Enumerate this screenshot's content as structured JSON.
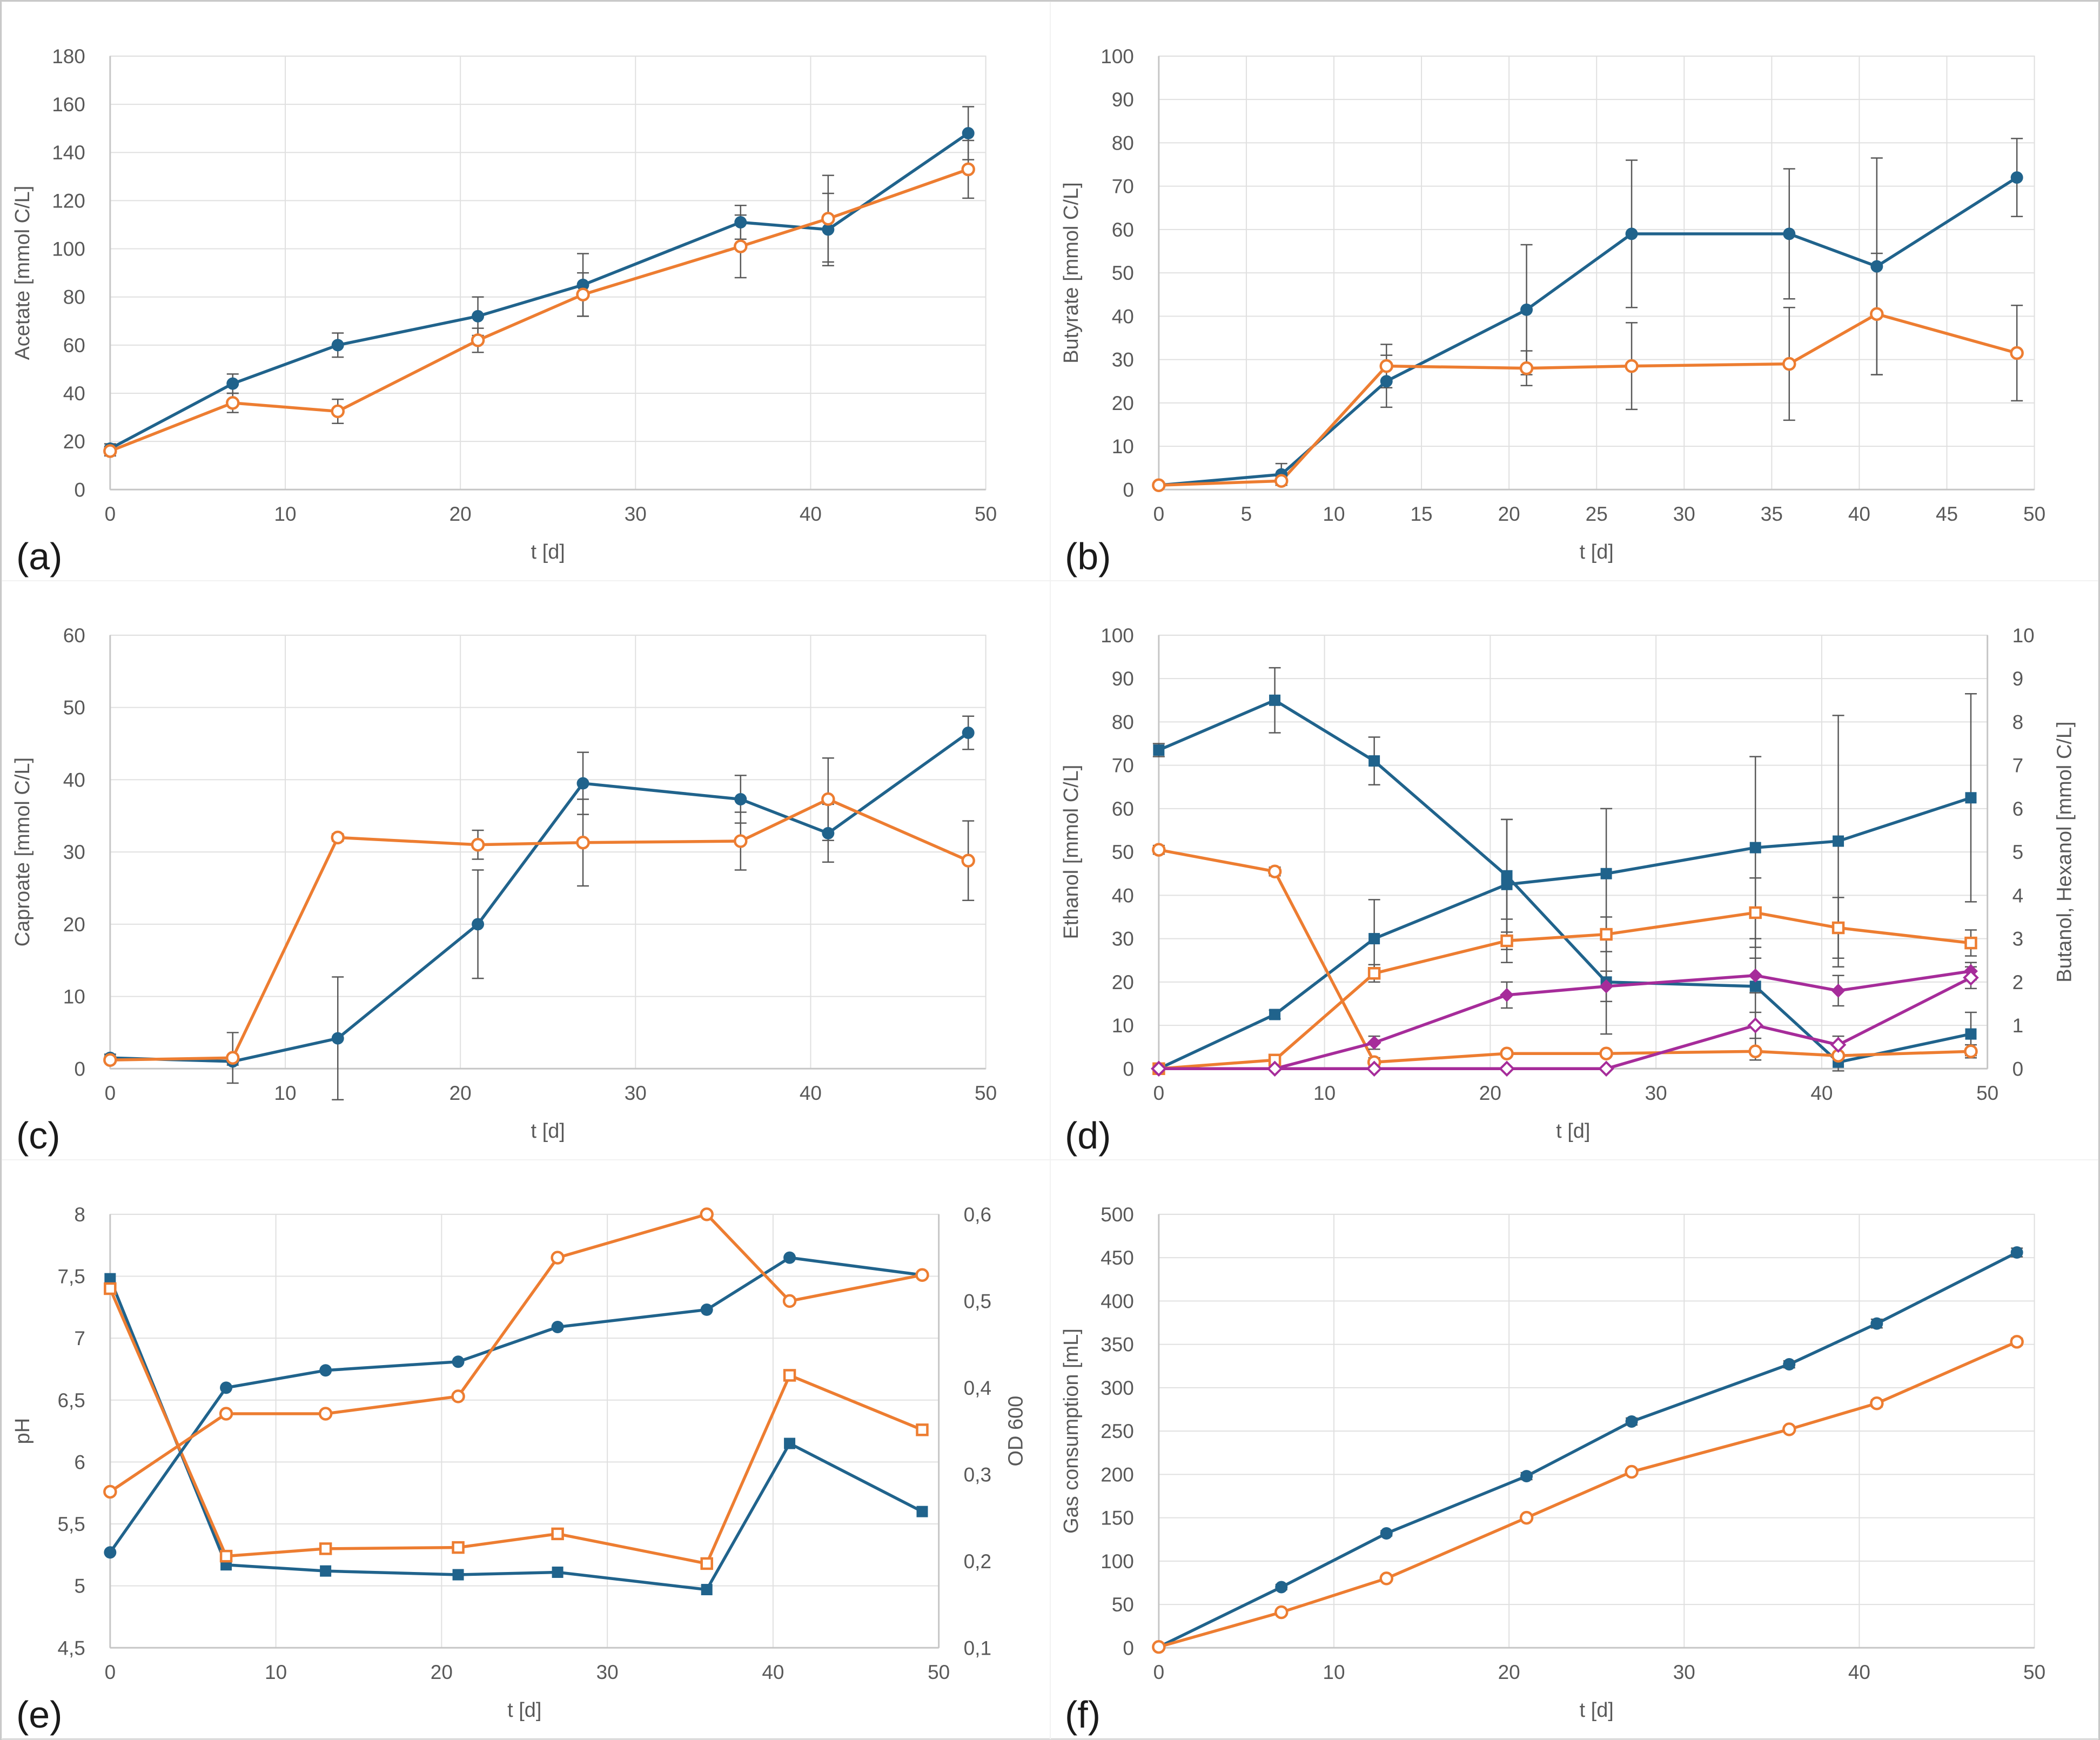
{
  "figure": {
    "background": "#ffffff",
    "border_color": "#c9c9c9",
    "colors": {
      "series_blue": "#20638C",
      "series_orange": "#ED7D31",
      "series_purple": "#A62C9A",
      "error_bar": "#595959",
      "gridline": "#E0E0E0",
      "axis_line": "#C6C6C6",
      "tick_text": "#595959",
      "axis_title_text": "#595959",
      "panel_letter": "#1a1a1a"
    }
  },
  "chart_data": [
    {
      "type": "line",
      "id": "a",
      "panel_label": "(a)",
      "x_axis": {
        "label": "t [d]",
        "min": 0,
        "max": 50,
        "tick_values": [
          0,
          10,
          20,
          30,
          40,
          50
        ],
        "tick_labels": [
          "0",
          "10",
          "20",
          "30",
          "40",
          "50"
        ]
      },
      "y_left": {
        "label": "Acetate [mmol C/L]",
        "min": 0,
        "max": 180,
        "tick_values": [
          0,
          20,
          40,
          60,
          80,
          100,
          120,
          140,
          160,
          180
        ],
        "tick_labels": [
          "0",
          "20",
          "40",
          "60",
          "80",
          "100",
          "120",
          "140",
          "160",
          "180"
        ]
      },
      "series": [
        {
          "name": "blue-closed-circles",
          "axis": "left",
          "color": "series_blue",
          "marker": "filled-circle",
          "x": [
            0,
            7,
            13,
            21,
            27,
            36,
            41,
            49
          ],
          "y": [
            17,
            44,
            60,
            72,
            85,
            111,
            108,
            148
          ],
          "err": [
            2,
            4,
            5,
            8,
            13,
            7,
            15,
            11
          ]
        },
        {
          "name": "orange-open-circles",
          "axis": "left",
          "color": "series_orange",
          "marker": "open-circle",
          "x": [
            0,
            7,
            13,
            21,
            27,
            36,
            41,
            49
          ],
          "y": [
            16,
            36,
            32.5,
            62,
            81,
            101,
            112.5,
            133
          ],
          "err": [
            2,
            4,
            5,
            5,
            9,
            13,
            18,
            12
          ]
        }
      ]
    },
    {
      "type": "line",
      "id": "b",
      "panel_label": "(b)",
      "x_axis": {
        "label": "t [d]",
        "min": 0,
        "max": 50,
        "tick_values": [
          0,
          5,
          10,
          15,
          20,
          25,
          30,
          35,
          40,
          45,
          50
        ],
        "tick_labels": [
          "0",
          "5",
          "10",
          "15",
          "20",
          "25",
          "30",
          "35",
          "40",
          "45",
          "50"
        ]
      },
      "y_left": {
        "label": "Butyrate [mmol C/L]",
        "min": 0,
        "max": 100,
        "tick_values": [
          0,
          10,
          20,
          30,
          40,
          50,
          60,
          70,
          80,
          90,
          100
        ],
        "tick_labels": [
          "0",
          "10",
          "20",
          "30",
          "40",
          "50",
          "60",
          "70",
          "80",
          "90",
          "100"
        ]
      },
      "series": [
        {
          "name": "blue-closed-circles",
          "axis": "left",
          "color": "series_blue",
          "marker": "filled-circle",
          "x": [
            0,
            7,
            13,
            21,
            27,
            36,
            41,
            49
          ],
          "y": [
            1,
            3.5,
            25,
            41.5,
            59,
            59,
            51.5,
            72
          ],
          "err": [
            0.5,
            2.5,
            6,
            15,
            17,
            15,
            25,
            9
          ]
        },
        {
          "name": "orange-open-circles",
          "axis": "left",
          "color": "series_orange",
          "marker": "open-circle",
          "x": [
            0,
            7,
            13,
            21,
            27,
            36,
            41,
            49
          ],
          "y": [
            1,
            2,
            28.5,
            28,
            28.5,
            29,
            40.5,
            31.5
          ],
          "err": [
            0.5,
            1,
            5,
            4,
            10,
            13,
            14,
            11
          ]
        }
      ]
    },
    {
      "type": "line",
      "id": "c",
      "panel_label": "(c)",
      "x_axis": {
        "label": "t [d]",
        "min": 0,
        "max": 50,
        "tick_values": [
          0,
          10,
          20,
          30,
          40,
          50
        ],
        "tick_labels": [
          "0",
          "10",
          "20",
          "30",
          "40",
          "50"
        ]
      },
      "y_left": {
        "label": "Caproate [mmol C/L]",
        "min": 0,
        "max": 60,
        "tick_values": [
          0,
          10,
          20,
          30,
          40,
          50,
          60
        ],
        "tick_labels": [
          "0",
          "10",
          "20",
          "30",
          "40",
          "50",
          "60"
        ]
      },
      "series": [
        {
          "name": "blue-closed-circles",
          "axis": "left",
          "color": "series_blue",
          "marker": "filled-circle",
          "x": [
            0,
            7,
            13,
            21,
            27,
            36,
            41,
            49
          ],
          "y": [
            1.5,
            1,
            4.2,
            20,
            39.5,
            37.3,
            32.6,
            46.5
          ],
          "err": [
            0.5,
            0.5,
            8.5,
            7.5,
            4.3,
            3.3,
            4,
            2.3
          ]
        },
        {
          "name": "orange-open-circles",
          "axis": "left",
          "color": "series_orange",
          "marker": "open-circle",
          "x": [
            0,
            7,
            13,
            21,
            27,
            36,
            41,
            49
          ],
          "y": [
            1.2,
            1.5,
            32,
            31,
            31.3,
            31.5,
            37.3,
            28.8
          ],
          "err": [
            0.3,
            3.5,
            0.5,
            2,
            6,
            4,
            5.7,
            5.5
          ]
        }
      ]
    },
    {
      "type": "line",
      "id": "d",
      "panel_label": "(d)",
      "x_axis": {
        "label": "t [d]",
        "min": 0,
        "max": 50,
        "tick_values": [
          0,
          10,
          20,
          30,
          40,
          50
        ],
        "tick_labels": [
          "0",
          "10",
          "20",
          "30",
          "40",
          "50"
        ]
      },
      "y_left": {
        "label": "Ethanol [mmol C/L]",
        "min": 0,
        "max": 100,
        "tick_values": [
          0,
          10,
          20,
          30,
          40,
          50,
          60,
          70,
          80,
          90,
          100
        ],
        "tick_labels": [
          "0",
          "10",
          "20",
          "30",
          "40",
          "50",
          "60",
          "70",
          "80",
          "90",
          "100"
        ]
      },
      "y_right": {
        "label": "Butanol, Hexanol [mmol C/L]",
        "min": 0,
        "max": 10,
        "tick_values": [
          0,
          1,
          2,
          3,
          4,
          5,
          6,
          7,
          8,
          9,
          10
        ],
        "tick_labels": [
          "0",
          "1",
          "2",
          "3",
          "4",
          "5",
          "6",
          "7",
          "8",
          "9",
          "10"
        ]
      },
      "series": [
        {
          "name": "blue-closed-squares-declining",
          "axis": "left",
          "color": "series_blue",
          "marker": "filled-square",
          "x": [
            0,
            7,
            13,
            21,
            27,
            36,
            41,
            49
          ],
          "y": [
            73.5,
            85,
            71,
            44.5,
            20,
            19,
            1.5,
            8
          ],
          "err": [
            1.5,
            7.5,
            5.5,
            13,
            12,
            17,
            2,
            5
          ]
        },
        {
          "name": "blue-closed-squares-rising",
          "axis": "left",
          "color": "series_blue",
          "marker": "filled-square",
          "x": [
            0,
            7,
            13,
            21,
            27,
            36,
            41,
            49
          ],
          "y": [
            0,
            12.5,
            30,
            42.5,
            45,
            51,
            52.5,
            62.5
          ],
          "err": [
            0,
            1,
            9,
            15,
            15,
            21,
            29,
            24
          ]
        },
        {
          "name": "orange-open-circles-declining",
          "axis": "left",
          "color": "series_orange",
          "marker": "open-circle",
          "x": [
            0,
            7,
            13,
            21,
            27,
            36,
            41,
            49
          ],
          "y": [
            50.5,
            45.5,
            1.5,
            3.5,
            3.5,
            4,
            3,
            4
          ],
          "err": [
            1,
            1,
            1,
            0.5,
            0.5,
            0.5,
            0.5,
            1.5
          ]
        },
        {
          "name": "orange-open-squares-rising",
          "axis": "left",
          "color": "series_orange",
          "marker": "open-square",
          "x": [
            0,
            7,
            13,
            21,
            27,
            36,
            41,
            49
          ],
          "y": [
            0,
            2,
            22,
            29.5,
            31,
            36,
            32.5,
            29
          ],
          "err": [
            0,
            0.5,
            2,
            5,
            4,
            8,
            7,
            3
          ]
        },
        {
          "name": "purple-closed-diamonds",
          "axis": "right",
          "color": "series_purple",
          "marker": "filled-diamond",
          "x": [
            0,
            7,
            13,
            21,
            27,
            36,
            41,
            49
          ],
          "y": [
            0,
            0,
            0.6,
            1.7,
            1.9,
            2.15,
            1.8,
            2.25
          ],
          "err": [
            0,
            0,
            0.15,
            0.3,
            0.35,
            0.4,
            0.35,
            0.2
          ]
        },
        {
          "name": "purple-open-diamonds",
          "axis": "right",
          "color": "series_purple",
          "marker": "open-diamond",
          "x": [
            0,
            7,
            13,
            21,
            27,
            36,
            41,
            49
          ],
          "y": [
            0,
            0,
            0,
            0,
            0,
            1.0,
            0.55,
            2.1
          ],
          "err": [
            0,
            0,
            0,
            0,
            0,
            0.3,
            0.2,
            0.25
          ]
        }
      ]
    },
    {
      "type": "line",
      "id": "e",
      "panel_label": "(e)",
      "x_axis": {
        "label": "t [d]",
        "min": 0,
        "max": 50,
        "tick_values": [
          0,
          10,
          20,
          30,
          40,
          50
        ],
        "tick_labels": [
          "0",
          "10",
          "20",
          "30",
          "40",
          "50"
        ]
      },
      "y_left": {
        "label": "pH",
        "min": 4.5,
        "max": 8,
        "tick_values": [
          4.5,
          5,
          5.5,
          6,
          6.5,
          7,
          7.5,
          8
        ],
        "tick_labels": [
          "4,5",
          "5",
          "5,5",
          "6",
          "6,5",
          "7",
          "7,5",
          "8"
        ]
      },
      "y_right": {
        "label": "OD 600",
        "min": 0.1,
        "max": 0.6,
        "tick_values": [
          0.1,
          0.2,
          0.3,
          0.4,
          0.5,
          0.6
        ],
        "tick_labels": [
          "0,1",
          "0,2",
          "0,3",
          "0,4",
          "0,5",
          "0,6"
        ]
      },
      "series": [
        {
          "name": "blue-closed-squares-pH",
          "axis": "left",
          "color": "series_blue",
          "marker": "filled-square",
          "x": [
            0,
            7,
            13,
            21,
            27,
            36,
            41,
            49
          ],
          "y": [
            7.48,
            5.17,
            5.12,
            5.09,
            5.11,
            4.97,
            6.15,
            5.6
          ]
        },
        {
          "name": "orange-open-squares-pH",
          "axis": "left",
          "color": "series_orange",
          "marker": "open-square",
          "x": [
            0,
            7,
            13,
            21,
            27,
            36,
            41,
            49
          ],
          "y": [
            7.4,
            5.24,
            5.3,
            5.31,
            5.42,
            5.18,
            6.7,
            6.26
          ]
        },
        {
          "name": "blue-closed-circles-OD600",
          "axis": "right",
          "color": "series_blue",
          "marker": "filled-circle",
          "x": [
            0,
            7,
            13,
            21,
            27,
            36,
            41,
            49
          ],
          "y": [
            0.21,
            0.4,
            0.42,
            0.43,
            0.47,
            0.49,
            0.55,
            0.53
          ]
        },
        {
          "name": "orange-open-circles-OD600",
          "axis": "right",
          "color": "series_orange",
          "marker": "open-circle",
          "x": [
            0,
            7,
            13,
            21,
            27,
            36,
            41,
            49
          ],
          "y": [
            0.28,
            0.37,
            0.37,
            0.39,
            0.55,
            0.6,
            0.5,
            0.53
          ]
        }
      ]
    },
    {
      "type": "line",
      "id": "f",
      "panel_label": "(f)",
      "x_axis": {
        "label": "t [d]",
        "min": 0,
        "max": 50,
        "tick_values": [
          0,
          10,
          20,
          30,
          40,
          50
        ],
        "tick_labels": [
          "0",
          "10",
          "20",
          "30",
          "40",
          "50"
        ]
      },
      "y_left": {
        "label": "Gas consumption [mL]",
        "min": 0,
        "max": 500,
        "tick_values": [
          0,
          50,
          100,
          150,
          200,
          250,
          300,
          350,
          400,
          450,
          500
        ],
        "tick_labels": [
          "0",
          "50",
          "100",
          "150",
          "200",
          "250",
          "300",
          "350",
          "400",
          "450",
          "500"
        ]
      },
      "series": [
        {
          "name": "blue-closed-circles",
          "axis": "left",
          "color": "series_blue",
          "marker": "filled-circle",
          "x": [
            0,
            7,
            13,
            21,
            27,
            36,
            41,
            49
          ],
          "y": [
            1,
            70,
            132,
            198,
            261,
            327,
            374,
            456
          ],
          "err": [
            2,
            3,
            3,
            4,
            4,
            4,
            5,
            5
          ]
        },
        {
          "name": "orange-open-circles",
          "axis": "left",
          "color": "series_orange",
          "marker": "open-circle",
          "x": [
            0,
            7,
            13,
            21,
            27,
            36,
            41,
            49
          ],
          "y": [
            1,
            41,
            80,
            150,
            203,
            252,
            282,
            353
          ],
          "err": [
            1,
            2,
            2,
            3,
            3,
            3,
            4,
            4
          ]
        }
      ]
    }
  ]
}
